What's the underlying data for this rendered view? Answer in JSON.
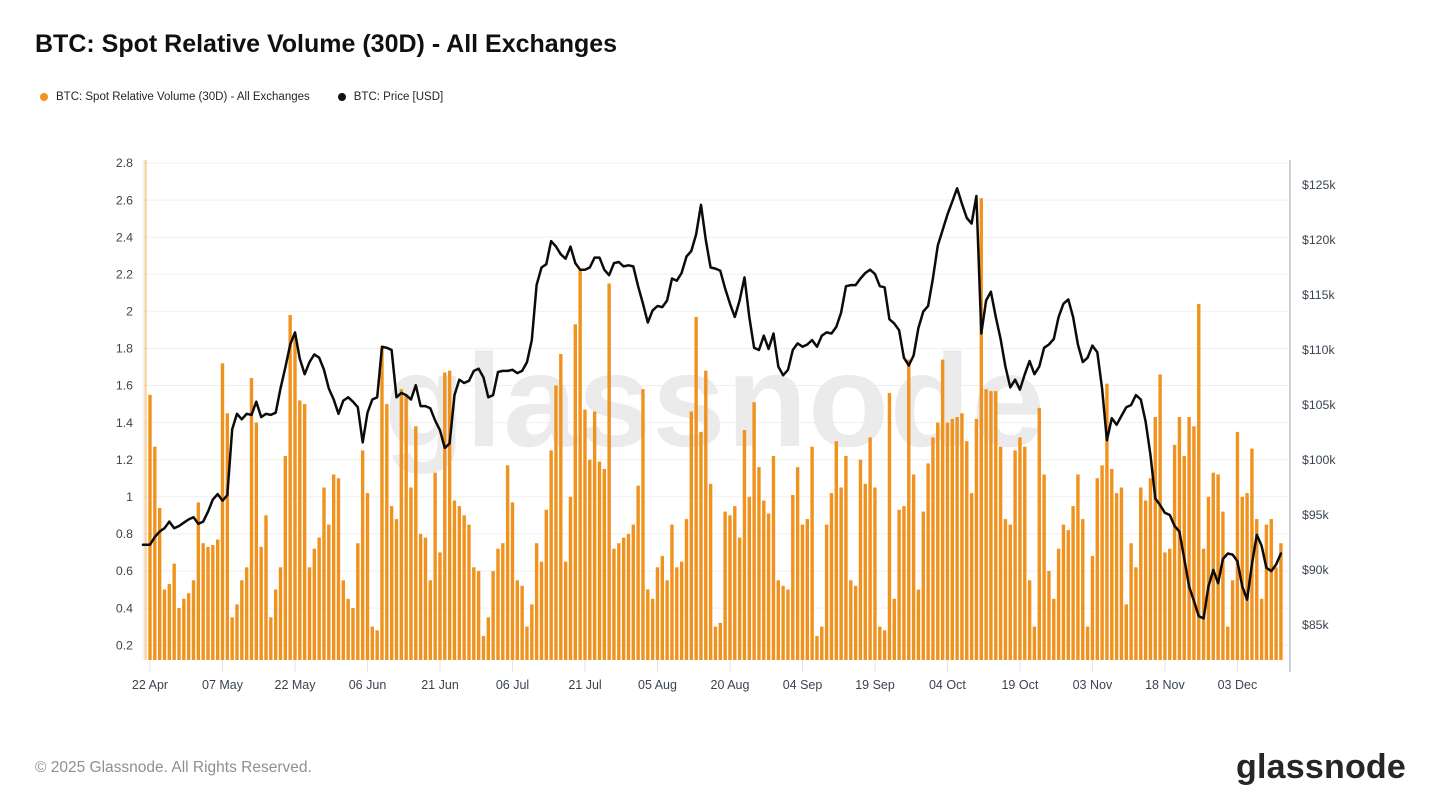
{
  "header": {
    "title": "BTC: Spot Relative Volume (30D) - All Exchanges",
    "legend": [
      {
        "label": "BTC: Spot Relative Volume (30D) - All Exchanges",
        "color": "#f0921e"
      },
      {
        "label": "BTC: Price [USD]",
        "color": "#111111"
      }
    ]
  },
  "watermark": "glassnode",
  "footer": {
    "copyright": "© 2025 Glassnode. All Rights Reserved.",
    "brand": "glassnode"
  },
  "chart_data": {
    "type": "combo",
    "title": "BTC: Spot Relative Volume (30D) - All Exchanges",
    "grid": "horizontal",
    "legend_position": "top-left",
    "x_ticks": [
      "22 Apr",
      "07 May",
      "22 May",
      "06 Jun",
      "21 Jun",
      "06 Jul",
      "21 Jul",
      "05 Aug",
      "20 Aug",
      "04 Sep",
      "19 Sep",
      "04 Oct",
      "19 Oct",
      "03 Nov",
      "18 Nov",
      "03 Dec"
    ],
    "x_tick_interval_days": 15,
    "left_axis": {
      "tick_labels": [
        "2.8",
        "2.6",
        "2.4",
        "2.2",
        "2",
        "1.8",
        "1.6",
        "1.4",
        "1.2",
        "1",
        "0.8",
        "0.6",
        "0.4",
        "0.2"
      ],
      "tick_values": [
        2.8,
        2.6,
        2.4,
        2.2,
        2.0,
        1.8,
        1.6,
        1.4,
        1.2,
        1.0,
        0.8,
        0.6,
        0.4,
        0.2
      ],
      "min": 0.12,
      "max": 2.816
    },
    "right_axis": {
      "tick_labels": [
        "$125k",
        "$120k",
        "$115k",
        "$110k",
        "$105k",
        "$100k",
        "$95k",
        "$90k",
        "$85k"
      ],
      "tick_values_k": [
        125,
        120,
        115,
        110,
        105,
        100,
        95,
        90,
        85
      ],
      "min_k": 81.82,
      "max_k": 127.27
    },
    "leading_partial_bar": {
      "present": true,
      "opacity": 0.38
    },
    "series": [
      {
        "name": "BTC: Spot Relative Volume (30D) - All Exchanges",
        "type": "bar",
        "axis": "left",
        "color": "#f0921e",
        "start_label": "22 Apr",
        "values": [
          1.55,
          1.27,
          0.94,
          0.5,
          0.53,
          0.64,
          0.4,
          0.45,
          0.48,
          0.55,
          0.97,
          0.75,
          0.73,
          0.74,
          0.77,
          1.72,
          1.45,
          0.35,
          0.42,
          0.55,
          0.62,
          1.64,
          1.4,
          0.73,
          0.9,
          0.35,
          0.5,
          0.62,
          1.22,
          1.98,
          1.88,
          1.52,
          1.5,
          0.62,
          0.72,
          0.78,
          1.05,
          0.85,
          1.12,
          1.1,
          0.55,
          0.45,
          0.4,
          0.75,
          1.25,
          1.02,
          0.3,
          0.28,
          1.8,
          1.5,
          0.95,
          0.88,
          1.58,
          1.55,
          1.05,
          1.38,
          0.8,
          0.78,
          0.55,
          1.13,
          0.7,
          1.67,
          1.68,
          0.98,
          0.95,
          0.9,
          0.85,
          0.62,
          0.6,
          0.25,
          0.35,
          0.6,
          0.72,
          0.75,
          1.17,
          0.97,
          0.55,
          0.52,
          0.3,
          0.42,
          0.75,
          0.65,
          0.93,
          1.25,
          1.6,
          1.77,
          0.65,
          1.0,
          1.93,
          2.22,
          1.47,
          1.2,
          1.46,
          1.19,
          1.15,
          2.15,
          0.72,
          0.75,
          0.78,
          0.8,
          0.85,
          1.06,
          1.58,
          0.5,
          0.45,
          0.62,
          0.68,
          0.55,
          0.85,
          0.62,
          0.65,
          0.88,
          1.46,
          1.97,
          1.35,
          1.68,
          1.07,
          0.3,
          0.32,
          0.92,
          0.9,
          0.95,
          0.78,
          1.36,
          1.0,
          1.51,
          1.16,
          0.98,
          0.91,
          1.22,
          0.55,
          0.52,
          0.5,
          1.01,
          1.16,
          0.85,
          0.88,
          1.27,
          0.25,
          0.3,
          0.85,
          1.02,
          1.3,
          1.05,
          1.22,
          0.55,
          0.52,
          1.2,
          1.07,
          1.32,
          1.05,
          0.3,
          0.28,
          1.56,
          0.45,
          0.93,
          0.95,
          1.74,
          1.12,
          0.5,
          0.92,
          1.18,
          1.32,
          1.4,
          1.74,
          1.4,
          1.42,
          1.43,
          1.45,
          1.3,
          1.02,
          1.42,
          2.61,
          1.58,
          1.57,
          1.57,
          1.27,
          0.88,
          0.85,
          1.25,
          1.32,
          1.27,
          0.55,
          0.3,
          1.48,
          1.12,
          0.6,
          0.45,
          0.72,
          0.85,
          0.82,
          0.95,
          1.12,
          0.88,
          0.3,
          0.68,
          1.1,
          1.17,
          1.61,
          1.15,
          1.02,
          1.05,
          0.42,
          0.75,
          0.62,
          1.05,
          0.98,
          1.1,
          1.43,
          1.66,
          0.7,
          0.72,
          1.28,
          1.43,
          1.22,
          1.43,
          1.38,
          2.04,
          0.72,
          1.0,
          1.13,
          1.12,
          0.92,
          0.3,
          0.55,
          1.35,
          1.0,
          1.02,
          1.26,
          0.88,
          0.45,
          0.85,
          0.88,
          0.62,
          0.75
        ]
      },
      {
        "name": "BTC: Price [USD]",
        "type": "line",
        "axis": "right",
        "color": "#0b0b0b",
        "unit": "USD thousands",
        "start_label": "22 Apr",
        "values_usd_k": [
          92.3,
          93.0,
          93.5,
          93.8,
          94.4,
          93.8,
          94.0,
          94.3,
          94.6,
          94.8,
          94.2,
          94.4,
          95.3,
          96.4,
          96.9,
          96.3,
          96.8,
          102.8,
          104.2,
          103.7,
          104.2,
          104.1,
          105.3,
          103.9,
          104.2,
          104.1,
          104.3,
          106.5,
          108.4,
          110.5,
          111.6,
          109.2,
          107.8,
          108.9,
          109.6,
          109.3,
          108.2,
          106.5,
          105.5,
          104.2,
          105.4,
          105.7,
          105.3,
          104.8,
          101.6,
          104.3,
          105.5,
          105.7,
          110.3,
          110.2,
          110.0,
          105.7,
          106.1,
          105.9,
          105.5,
          106.8,
          104.9,
          104.9,
          104.7,
          103.6,
          102.7,
          101.1,
          101.5,
          105.9,
          107.3,
          107.0,
          107.2,
          108.1,
          108.3,
          107.5,
          105.7,
          105.9,
          108.0,
          108.1,
          108.1,
          108.2,
          107.9,
          108.1,
          108.9,
          110.9,
          115.9,
          117.5,
          117.8,
          119.9,
          119.4,
          118.7,
          118.3,
          119.4,
          117.9,
          117.3,
          117.3,
          117.5,
          118.4,
          118.4,
          117.3,
          116.8,
          117.9,
          118.0,
          117.6,
          117.7,
          117.6,
          115.8,
          114.2,
          112.5,
          113.6,
          114.0,
          113.9,
          114.5,
          116.5,
          116.3,
          117.0,
          118.5,
          119.0,
          120.5,
          123.2,
          120.0,
          117.5,
          117.4,
          117.2,
          115.6,
          114.2,
          113.0,
          114.5,
          116.6,
          113.0,
          110.2,
          110.0,
          111.3,
          110.1,
          111.5,
          108.5,
          107.7,
          108.2,
          110.0,
          110.6,
          110.3,
          110.5,
          110.9,
          110.3,
          111.3,
          111.6,
          111.5,
          112.1,
          113.4,
          115.8,
          115.9,
          115.9,
          116.5,
          117.0,
          117.3,
          116.9,
          115.8,
          115.7,
          112.8,
          112.4,
          111.8,
          109.3,
          108.6,
          109.5,
          112.0,
          113.5,
          114.0,
          116.5,
          119.5,
          120.9,
          122.3,
          123.5,
          124.7,
          123.3,
          122.0,
          121.5,
          124.0,
          111.5,
          114.5,
          115.3,
          113.0,
          111.0,
          108.5,
          106.6,
          107.3,
          106.4,
          107.8,
          109.0,
          107.8,
          108.5,
          110.2,
          110.5,
          111.0,
          113.0,
          114.2,
          114.6,
          113.0,
          110.5,
          108.9,
          109.3,
          110.4,
          109.8,
          106.5,
          101.8,
          103.8,
          103.2,
          104.0,
          104.8,
          105.0,
          105.9,
          105.5,
          103.5,
          100.5,
          96.5,
          95.9,
          95.2,
          95.0,
          94.0,
          93.5,
          91.0,
          88.5,
          87.2,
          85.8,
          85.6,
          88.5,
          90.0,
          88.8,
          91.0,
          91.5,
          91.4,
          90.8,
          88.5,
          87.3,
          90.5,
          93.2,
          92.2,
          90.2,
          89.9,
          90.5,
          91.5
        ]
      }
    ]
  }
}
